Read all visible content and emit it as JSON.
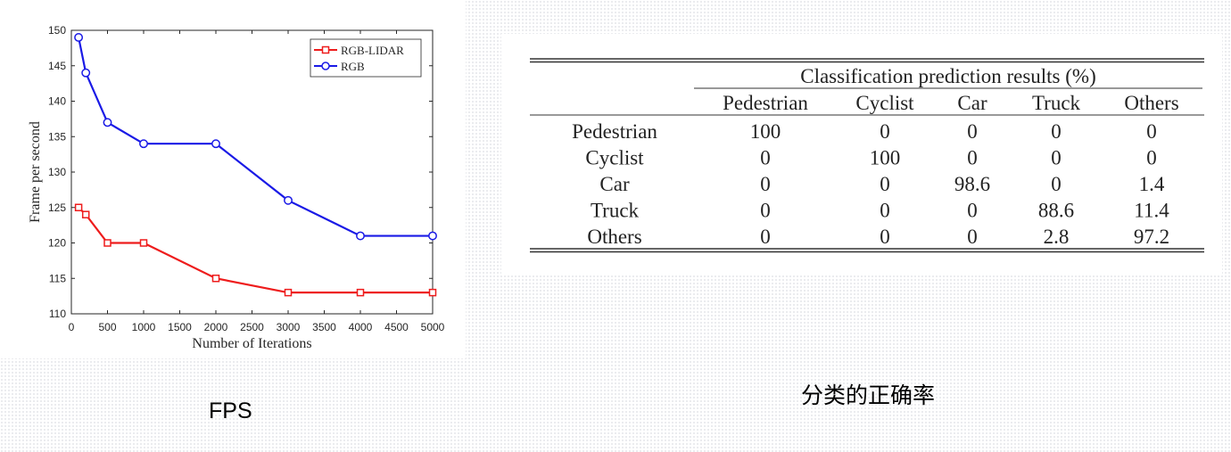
{
  "captions": {
    "left": "FPS",
    "right": "分类的正确率"
  },
  "chart_data": {
    "type": "line",
    "title": "",
    "xlabel": "Number of Iterations",
    "ylabel": "Frame per second",
    "xlim": [
      0,
      5000
    ],
    "ylim": [
      110,
      150
    ],
    "x_ticks": [
      0,
      500,
      1000,
      1500,
      2000,
      2500,
      3000,
      3500,
      4000,
      4500,
      5000
    ],
    "y_ticks": [
      110,
      115,
      120,
      125,
      130,
      135,
      140,
      145,
      150
    ],
    "grid": false,
    "legend_position": "top-right",
    "series": [
      {
        "name": "RGB-LIDAR",
        "color": "#ee1c1c",
        "marker": "square",
        "x": [
          100,
          200,
          500,
          1000,
          2000,
          3000,
          4000,
          5000
        ],
        "values": [
          125,
          124,
          120,
          120,
          115,
          113,
          113,
          113
        ]
      },
      {
        "name": "RGB",
        "color": "#1a1ae6",
        "marker": "circle",
        "x": [
          100,
          200,
          500,
          1000,
          2000,
          3000,
          4000,
          5000
        ],
        "values": [
          149,
          144,
          137,
          134,
          134,
          126,
          121,
          121
        ]
      }
    ]
  },
  "table": {
    "group_header": "Classification prediction results (%)",
    "columns": [
      "Pedestrian",
      "Cyclist",
      "Car",
      "Truck",
      "Others"
    ],
    "rows": [
      {
        "label": "Pedestrian",
        "cells": [
          "100",
          "0",
          "0",
          "0",
          "0"
        ]
      },
      {
        "label": "Cyclist",
        "cells": [
          "0",
          "100",
          "0",
          "0",
          "0"
        ]
      },
      {
        "label": "Car",
        "cells": [
          "0",
          "0",
          "98.6",
          "0",
          "1.4"
        ]
      },
      {
        "label": "Truck",
        "cells": [
          "0",
          "0",
          "0",
          "88.6",
          "11.4"
        ]
      },
      {
        "label": "Others",
        "cells": [
          "0",
          "0",
          "0",
          "2.8",
          "97.2"
        ]
      }
    ]
  }
}
